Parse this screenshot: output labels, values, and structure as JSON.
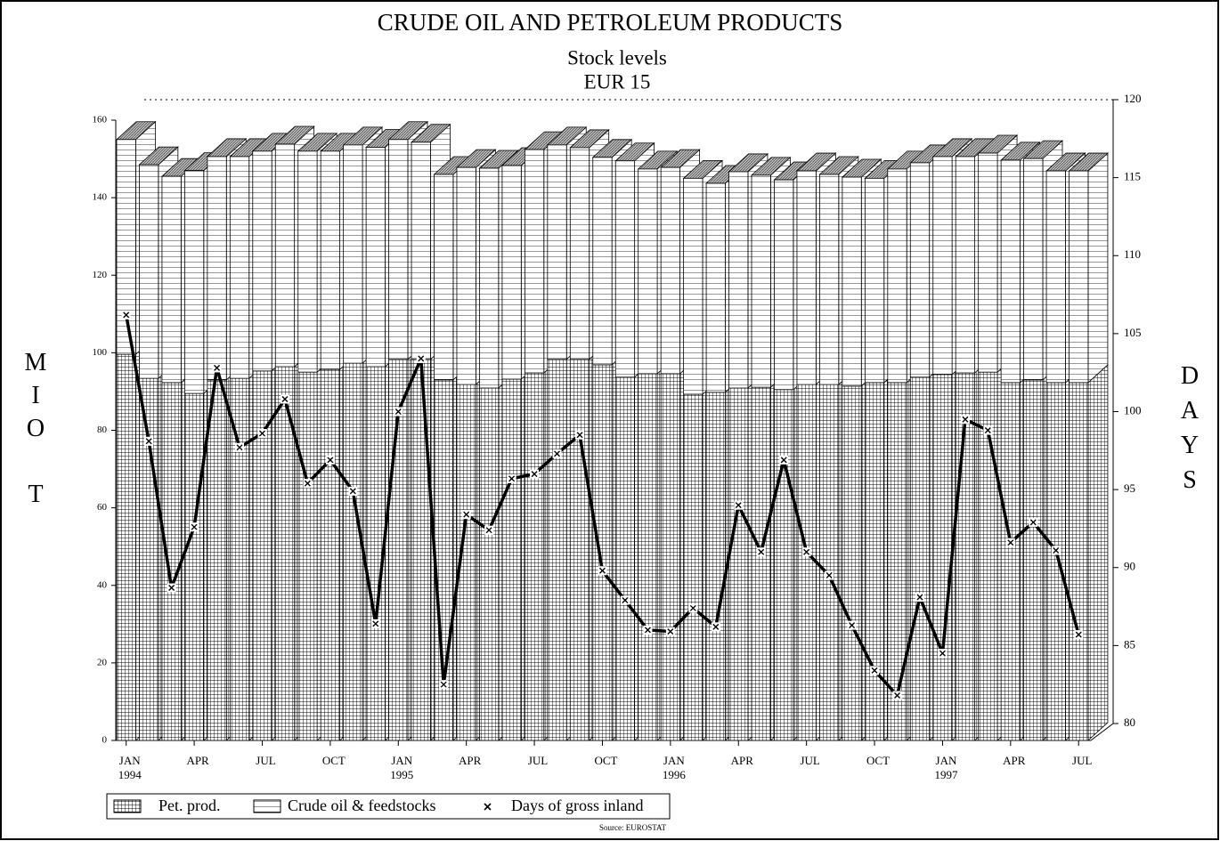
{
  "chart_data": {
    "type": "bar3d-stacked-line",
    "title": "CRUDE OIL AND PETROLEUM PRODUCTS",
    "subtitle": "Stock levels",
    "subtitle2": "EUR 15",
    "ylabel": "MIO T",
    "y2label": "DAYS",
    "source": "Source: EUROSTAT",
    "categories": [
      "JAN 1994",
      null,
      null,
      "APR",
      null,
      null,
      "JUL",
      null,
      null,
      "OCT",
      null,
      null,
      "JAN 1995",
      null,
      null,
      "APR",
      null,
      null,
      "JUL",
      null,
      null,
      "OCT",
      null,
      null,
      "JAN 1996",
      null,
      null,
      "APR",
      null,
      null,
      "JUL",
      null,
      null,
      "OCT",
      null,
      null,
      "JAN 1997",
      null,
      null,
      "APR",
      null,
      null,
      "JUL"
    ],
    "series": [
      {
        "name": "Pet. prod.",
        "color": "#000000",
        "values": [
          99.6,
          93.4,
          92.3,
          89.5,
          93,
          93.4,
          95.3,
          96.4,
          95,
          95.7,
          97.3,
          96.4,
          98.3,
          98.3,
          93,
          91.8,
          90.9,
          93.2,
          94.8,
          98.3,
          98.3,
          96.9,
          93.7,
          94.6,
          94.6,
          89.3,
          89.8,
          90.9,
          91.1,
          90.5,
          91.8,
          91.8,
          91.4,
          92.3,
          92.3,
          93.7,
          94.4,
          94.8,
          95,
          92.3,
          93,
          92.3,
          92.3
        ]
      },
      {
        "name": "Crude oil & feedstocks",
        "color": "#000000",
        "values": [
          55.4,
          55.1,
          53.2,
          57.5,
          57.6,
          57.2,
          56.7,
          57.4,
          57,
          56.3,
          56.3,
          56.6,
          56.7,
          56,
          53,
          56,
          56.7,
          55.1,
          57.6,
          55.3,
          54.6,
          53.5,
          55.8,
          52.8,
          53.2,
          55.7,
          53.9,
          55.8,
          54.7,
          54.1,
          55.1,
          54.2,
          53.9,
          52.7,
          55.1,
          55.3,
          56.2,
          55.8,
          56.5,
          57.4,
          57.1,
          54.6,
          54.6
        ]
      },
      {
        "name": "Days of gross inland",
        "color": "#000000",
        "axis": "y2",
        "values": [
          106.2,
          98.1,
          88.7,
          92.6,
          102.8,
          97.7,
          98.6,
          100.8,
          95.4,
          96.9,
          94.9,
          86.4,
          100,
          103.4,
          82.5,
          93.4,
          92.4,
          95.7,
          96,
          97.3,
          98.5,
          89.8,
          87.9,
          86,
          85.9,
          87.4,
          86.2,
          94,
          91,
          96.9,
          91,
          89.5,
          86.3,
          83.4,
          81.8,
          88.1,
          84.5,
          99.5,
          98.8,
          91.6,
          92.9,
          91.1,
          85.7
        ]
      }
    ],
    "ylim": [
      0,
      160
    ],
    "yticks": [
      0,
      20,
      40,
      60,
      80,
      100,
      120,
      140,
      160
    ],
    "y2lim": [
      80,
      120
    ],
    "y2ticks": [
      80,
      85,
      90,
      95,
      100,
      105,
      110,
      115,
      120
    ]
  }
}
